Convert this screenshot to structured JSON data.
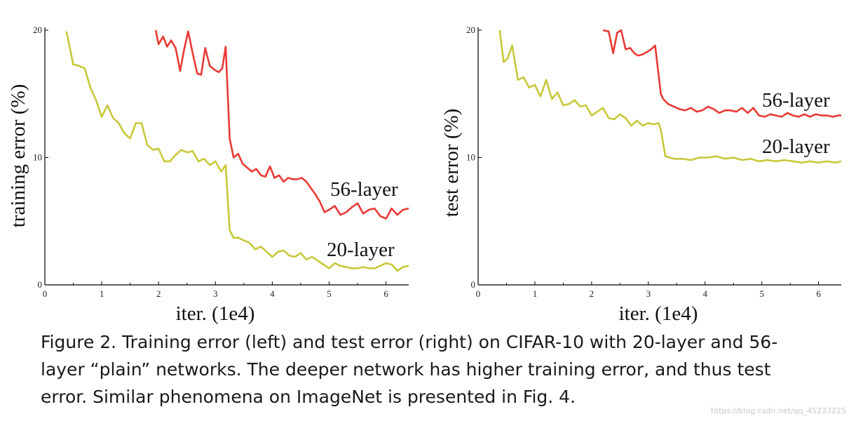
{
  "caption": "Figure 2. Training error (left) and test error (right) on CIFAR-10 with 20-layer and 56-layer “plain” networks. The deeper network has higher training error, and thus test error. Similar phenomena on ImageNet is presented in Fig. 4.",
  "watermark": "https://blog.csdn.net/qq_45233225",
  "colors": {
    "layer20": "#c8c83a",
    "layer56": "#e83a35"
  },
  "chart_data": [
    {
      "type": "line",
      "xlabel": "iter. (1e4)",
      "ylabel": "training error (%)",
      "xlim": [
        0,
        6.4
      ],
      "ylim": [
        0,
        20
      ],
      "xticks": [
        "0",
        "1",
        "2",
        "3",
        "4",
        "5",
        "6"
      ],
      "yticks": [
        "0",
        "10",
        "20"
      ],
      "series": [
        {
          "name": "56-layer",
          "x": [
            1.95,
            2.0,
            2.08,
            2.15,
            2.22,
            2.3,
            2.38,
            2.45,
            2.52,
            2.6,
            2.68,
            2.75,
            2.82,
            2.9,
            2.98,
            3.06,
            3.12,
            3.18,
            3.25,
            3.32,
            3.4,
            3.48,
            3.56,
            3.64,
            3.72,
            3.8,
            3.88,
            3.96,
            4.04,
            4.12,
            4.2,
            4.28,
            4.36,
            4.44,
            4.52,
            4.6,
            4.68,
            4.76,
            4.84,
            4.92,
            5.0,
            5.1,
            5.2,
            5.3,
            5.4,
            5.5,
            5.6,
            5.7,
            5.8,
            5.9,
            6.0,
            6.1,
            6.2,
            6.3,
            6.4
          ],
          "y": [
            20.0,
            18.9,
            19.5,
            18.7,
            19.2,
            18.6,
            16.8,
            18.5,
            19.9,
            18.2,
            16.6,
            16.5,
            18.6,
            17.2,
            16.9,
            16.7,
            17.0,
            18.7,
            11.5,
            10.0,
            10.3,
            9.5,
            9.2,
            8.9,
            9.1,
            8.6,
            8.5,
            9.3,
            8.4,
            8.6,
            8.1,
            8.4,
            8.3,
            8.3,
            8.4,
            8.1,
            7.6,
            7.1,
            6.5,
            5.7,
            5.9,
            6.2,
            5.5,
            5.7,
            6.1,
            6.4,
            5.6,
            5.9,
            6.0,
            5.4,
            5.2,
            6.0,
            5.5,
            5.9,
            6.0
          ]
        },
        {
          "name": "20-layer",
          "x": [
            0.38,
            0.5,
            0.6,
            0.7,
            0.8,
            0.9,
            1.0,
            1.1,
            1.2,
            1.3,
            1.4,
            1.5,
            1.6,
            1.7,
            1.8,
            1.9,
            2.0,
            2.1,
            2.2,
            2.3,
            2.4,
            2.5,
            2.6,
            2.7,
            2.8,
            2.9,
            3.0,
            3.1,
            3.18,
            3.25,
            3.32,
            3.4,
            3.5,
            3.6,
            3.7,
            3.8,
            3.9,
            4.0,
            4.1,
            4.2,
            4.3,
            4.4,
            4.5,
            4.6,
            4.7,
            4.8,
            4.9,
            5.0,
            5.1,
            5.2,
            5.3,
            5.4,
            5.5,
            5.6,
            5.7,
            5.8,
            5.9,
            6.0,
            6.1,
            6.2,
            6.3,
            6.4
          ],
          "y": [
            19.9,
            17.3,
            17.2,
            17.0,
            15.5,
            14.5,
            13.2,
            14.1,
            13.1,
            12.7,
            11.9,
            11.5,
            12.7,
            12.7,
            11.0,
            10.6,
            10.7,
            9.7,
            9.7,
            10.2,
            10.6,
            10.4,
            10.5,
            9.7,
            9.9,
            9.4,
            9.7,
            8.9,
            9.4,
            4.3,
            3.7,
            3.7,
            3.5,
            3.3,
            2.8,
            3.0,
            2.6,
            2.2,
            2.6,
            2.7,
            2.3,
            2.2,
            2.5,
            2.0,
            2.2,
            1.9,
            1.6,
            1.3,
            1.7,
            1.5,
            1.4,
            1.3,
            1.3,
            1.4,
            1.3,
            1.3,
            1.5,
            1.7,
            1.6,
            1.1,
            1.4,
            1.5
          ]
        }
      ]
    },
    {
      "type": "line",
      "xlabel": "iter. (1e4)",
      "ylabel": "test error (%)",
      "xlim": [
        0,
        6.4
      ],
      "ylim": [
        0,
        20
      ],
      "xticks": [
        "0",
        "1",
        "2",
        "3",
        "4",
        "5",
        "6"
      ],
      "yticks": [
        "0",
        "10",
        "20"
      ],
      "series": [
        {
          "name": "56-layer",
          "x": [
            2.2,
            2.3,
            2.38,
            2.45,
            2.52,
            2.6,
            2.68,
            2.75,
            2.82,
            2.9,
            2.98,
            3.05,
            3.12,
            3.18,
            3.22,
            3.26,
            3.35,
            3.45,
            3.55,
            3.65,
            3.75,
            3.85,
            3.95,
            4.05,
            4.15,
            4.25,
            4.35,
            4.45,
            4.55,
            4.65,
            4.75,
            4.85,
            4.95,
            5.05,
            5.15,
            5.25,
            5.35,
            5.45,
            5.55,
            5.65,
            5.75,
            5.85,
            5.95,
            6.05,
            6.15,
            6.25,
            6.35,
            6.4
          ],
          "y": [
            20.0,
            19.9,
            18.2,
            19.8,
            20.0,
            18.5,
            18.6,
            18.2,
            18.0,
            18.1,
            18.3,
            18.5,
            18.8,
            16.5,
            15.0,
            14.6,
            14.2,
            14.0,
            13.8,
            13.7,
            13.9,
            13.6,
            13.7,
            14.0,
            13.8,
            13.5,
            13.7,
            13.7,
            13.6,
            13.9,
            13.5,
            13.9,
            13.3,
            13.2,
            13.4,
            13.3,
            13.2,
            13.5,
            13.3,
            13.2,
            13.4,
            13.2,
            13.4,
            13.3,
            13.3,
            13.2,
            13.3,
            13.3
          ]
        },
        {
          "name": "20-layer",
          "x": [
            0.38,
            0.45,
            0.52,
            0.6,
            0.7,
            0.8,
            0.9,
            1.0,
            1.1,
            1.2,
            1.3,
            1.4,
            1.5,
            1.6,
            1.7,
            1.8,
            1.9,
            2.0,
            2.1,
            2.2,
            2.3,
            2.4,
            2.5,
            2.6,
            2.7,
            2.8,
            2.9,
            3.0,
            3.1,
            3.18,
            3.22,
            3.3,
            3.45,
            3.6,
            3.75,
            3.9,
            4.05,
            4.2,
            4.35,
            4.5,
            4.65,
            4.8,
            4.95,
            5.1,
            5.25,
            5.4,
            5.55,
            5.7,
            5.85,
            6.0,
            6.15,
            6.3,
            6.4
          ],
          "y": [
            20.0,
            17.5,
            17.8,
            18.8,
            16.1,
            16.3,
            15.5,
            15.7,
            14.8,
            16.1,
            14.6,
            15.1,
            14.1,
            14.2,
            14.5,
            14.0,
            14.1,
            13.3,
            13.6,
            13.9,
            13.1,
            13.0,
            13.4,
            13.1,
            12.5,
            12.9,
            12.5,
            12.7,
            12.6,
            12.7,
            12.2,
            10.1,
            9.9,
            9.9,
            9.8,
            10.0,
            10.0,
            10.1,
            9.9,
            10.0,
            9.8,
            9.9,
            9.7,
            9.8,
            9.7,
            9.8,
            9.7,
            9.6,
            9.7,
            9.6,
            9.7,
            9.6,
            9.7
          ]
        }
      ]
    }
  ]
}
